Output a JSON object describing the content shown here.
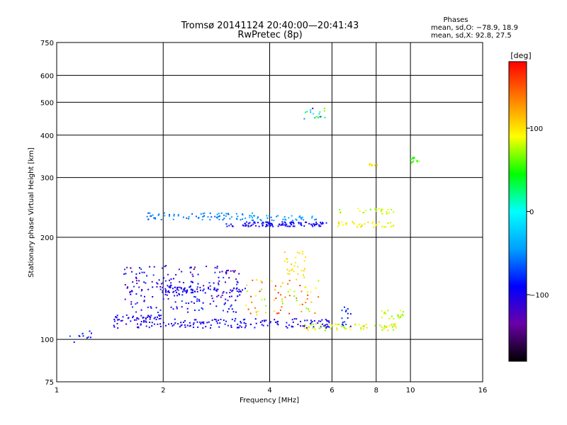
{
  "chart_data": {
    "type": "scatter",
    "title": "Tromsø 20141124 20:40:00—20:41:43",
    "subtitle": "RwPretec (8p)",
    "xlabel": "Frequency [MHz]",
    "ylabel": "Stationary phase Virtual Height [km]",
    "x_scale": "log",
    "y_scale": "log",
    "xlim": [
      1,
      16
    ],
    "ylim": [
      75,
      750
    ],
    "x_ticks": [
      1,
      2,
      4,
      6,
      8,
      10,
      16
    ],
    "x_tick_labels": [
      "1",
      "2",
      "4",
      "6",
      "8",
      "10",
      "16"
    ],
    "y_ticks": [
      75,
      100,
      200,
      300,
      400,
      500,
      600,
      750
    ],
    "y_tick_labels": [
      "75",
      "100",
      "200",
      "300",
      "400",
      "500",
      "600",
      "750"
    ],
    "grid": true,
    "stats": {
      "heading": "Phases",
      "line_o": "mean, sd,O: −78.9, 18.9",
      "line_x": "mean, sd,X:  92.8, 27.5"
    },
    "colorbar": {
      "label": "[deg]",
      "range": [
        -180,
        180
      ],
      "ticks": [
        100,
        0,
        -100
      ],
      "tick_labels": [
        "100",
        "0",
        "−100"
      ],
      "colors": [
        "#000000",
        "#6a00a8",
        "#0000ff",
        "#00a0ff",
        "#00ffff",
        "#00ff00",
        "#ffff00",
        "#ff8000",
        "#ff0000"
      ]
    },
    "series": [
      {
        "x_range": [
          1.05,
          1.3
        ],
        "h_range": [
          97,
          106
        ],
        "phase_range": [
          -110,
          -60
        ],
        "count": 12
      },
      {
        "x_range": [
          1.45,
          2.0
        ],
        "h_range": [
          108,
          118
        ],
        "phase_range": [
          -120,
          -80
        ],
        "count": 70
      },
      {
        "x_range": [
          2.0,
          6.0
        ],
        "h_range": [
          108,
          115
        ],
        "phase_range": [
          -115,
          -80
        ],
        "count": 140
      },
      {
        "x_range": [
          5.0,
          9.2
        ],
        "h_range": [
          106,
          111
        ],
        "phase_range": [
          60,
          110
        ],
        "count": 70
      },
      {
        "x_range": [
          1.55,
          3.3
        ],
        "h_range": [
          120,
          165
        ],
        "phase_range": [
          -140,
          -70
        ],
        "count": 220
      },
      {
        "x_range": [
          2.0,
          3.5
        ],
        "h_range": [
          137,
          143
        ],
        "phase_range": [
          -120,
          -80
        ],
        "count": 60
      },
      {
        "x_range": [
          3.4,
          5.6
        ],
        "h_range": [
          118,
          150
        ],
        "phase_range": [
          60,
          170
        ],
        "count": 70
      },
      {
        "x_range": [
          4.4,
          5.1
        ],
        "h_range": [
          150,
          185
        ],
        "phase_range": [
          95,
          110
        ],
        "count": 30
      },
      {
        "x_range": [
          1.8,
          3.6
        ],
        "h_range": [
          225,
          236
        ],
        "phase_range": [
          -70,
          -40
        ],
        "count": 70
      },
      {
        "x_range": [
          3.0,
          5.8
        ],
        "h_range": [
          215,
          222
        ],
        "phase_range": [
          -110,
          -80
        ],
        "count": 110
      },
      {
        "x_range": [
          3.5,
          5.5
        ],
        "h_range": [
          224,
          232
        ],
        "phase_range": [
          -60,
          -30
        ],
        "count": 40
      },
      {
        "x_range": [
          6.2,
          9.0
        ],
        "h_range": [
          214,
          222
        ],
        "phase_range": [
          80,
          110
        ],
        "count": 40
      },
      {
        "x_range": [
          6.3,
          9.0
        ],
        "h_range": [
          234,
          244
        ],
        "phase_range": [
          60,
          100
        ],
        "count": 25
      },
      {
        "x_range": [
          5.0,
          5.8
        ],
        "h_range": [
          440,
          480
        ],
        "phase_range": [
          -110,
          110
        ],
        "count": 18
      },
      {
        "x_range": [
          10.0,
          10.6
        ],
        "h_range": [
          330,
          345
        ],
        "phase_range": [
          30,
          80
        ],
        "count": 14
      },
      {
        "x_range": [
          7.6,
          8.1
        ],
        "h_range": [
          325,
          330
        ],
        "phase_range": [
          90,
          110
        ],
        "count": 10
      },
      {
        "x_range": [
          6.4,
          6.8
        ],
        "h_range": [
          108,
          125
        ],
        "phase_range": [
          -110,
          -70
        ],
        "count": 15
      },
      {
        "x_range": [
          8.3,
          9.6
        ],
        "h_range": [
          115,
          122
        ],
        "phase_range": [
          60,
          100
        ],
        "count": 20
      }
    ]
  }
}
